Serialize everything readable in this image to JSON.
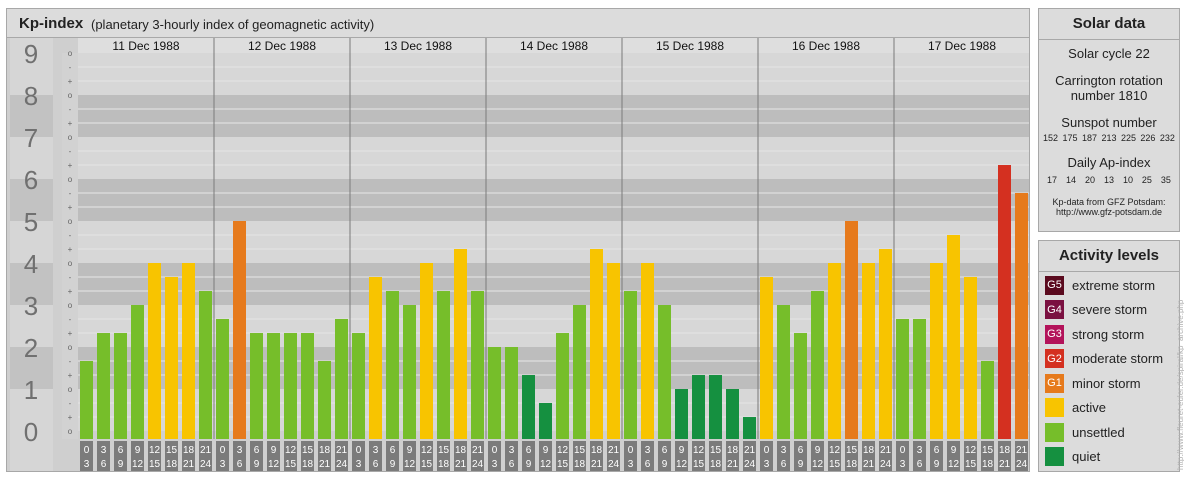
{
  "header": {
    "title": "Kp-index",
    "subtitle": "(planetary 3-hourly index of geomagnetic activity)"
  },
  "chart_data": {
    "type": "bar",
    "title": "Kp-index",
    "subtitle": "(planetary 3-hourly index of geomagnetic activity)",
    "ylim": [
      0,
      9
    ],
    "y_ticks": [
      "0",
      "1",
      "2",
      "3",
      "4",
      "5",
      "6",
      "7",
      "8",
      "9"
    ],
    "minor_ticks": [
      "o",
      "+",
      "-"
    ],
    "days": [
      "11 Dec 1988",
      "12 Dec 1988",
      "13 Dec 1988",
      "14 Dec 1988",
      "15 Dec 1988",
      "16 Dec 1988",
      "17 Dec 1988"
    ],
    "hour_starts": [
      "0",
      "3",
      "6",
      "9",
      "12",
      "15",
      "18",
      "21"
    ],
    "hour_ends": [
      "3",
      "6",
      "9",
      "12",
      "15",
      "18",
      "21",
      "24"
    ],
    "values": [
      [
        1.667,
        2.333,
        2.333,
        3.0,
        4.0,
        3.667,
        4.0,
        3.333
      ],
      [
        2.667,
        5.0,
        2.333,
        2.333,
        2.333,
        2.333,
        1.667,
        2.667
      ],
      [
        2.333,
        3.667,
        3.333,
        3.0,
        4.0,
        3.333,
        4.333,
        3.333
      ],
      [
        2.0,
        2.0,
        1.333,
        0.667,
        2.333,
        3.0,
        4.333,
        4.0
      ],
      [
        3.333,
        4.0,
        3.0,
        1.0,
        1.333,
        1.333,
        1.0,
        0.333
      ],
      [
        3.667,
        3.0,
        2.333,
        3.333,
        4.0,
        5.0,
        4.0,
        4.333
      ],
      [
        2.667,
        2.667,
        4.0,
        4.667,
        3.667,
        1.667,
        6.333,
        5.667
      ]
    ],
    "colors": {
      "quiet": "#159040",
      "unsettled": "#76be2a",
      "active": "#f8c400",
      "minor": "#e67a1c",
      "moderate": "#d43020"
    }
  },
  "solar": {
    "title": "Solar data",
    "cycle": "Solar cycle 22",
    "carrington_line1": "Carrington rotation",
    "carrington_line2": "number 1810",
    "sunspot_label": "Sunspot number",
    "sunspots": [
      "152",
      "175",
      "187",
      "213",
      "225",
      "226",
      "232"
    ],
    "ap_label": "Daily Ap-index",
    "ap": [
      "17",
      "14",
      "20",
      "13",
      "10",
      "25",
      "35"
    ],
    "source_line1": "Kp-data from GFZ Potsdam:",
    "source_line2": "http://www.gfz-potsdam.de"
  },
  "levels": {
    "title": "Activity levels",
    "items": [
      {
        "code": "G5",
        "label": "extreme storm",
        "color": "#5a0a1e"
      },
      {
        "code": "G4",
        "label": "severe storm",
        "color": "#7a1040"
      },
      {
        "code": "G3",
        "label": "strong storm",
        "color": "#b3135a"
      },
      {
        "code": "G2",
        "label": "moderate storm",
        "color": "#d43020"
      },
      {
        "code": "G1",
        "label": "minor storm",
        "color": "#e67a1c"
      },
      {
        "code": "",
        "label": "active",
        "color": "#f8c400"
      },
      {
        "code": "",
        "label": "unsettled",
        "color": "#76be2a"
      },
      {
        "code": "",
        "label": "quiet",
        "color": "#159040"
      }
    ]
  },
  "credit": "http://www.fleuret-euler.de/spiral/kp_archive.php"
}
